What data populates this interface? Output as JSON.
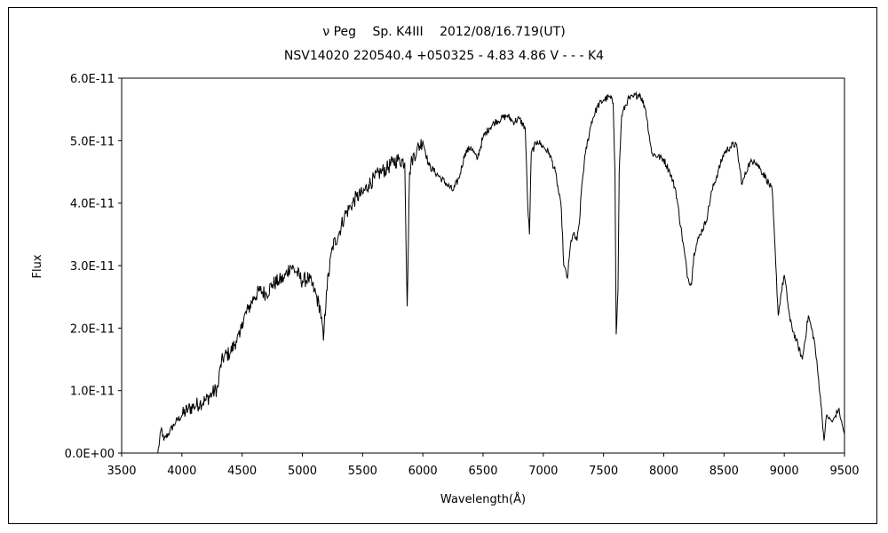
{
  "chart_data": {
    "type": "line",
    "title": "ν Peg　 Sp. K4III　 2012/08/16.719(UT)",
    "subtitle": "NSV14020 220540.4 +050325 - 4.83 4.86 V - - - K4",
    "xlabel": "Wavelength(Å)",
    "ylabel": "Flux",
    "xlim": [
      3500,
      9500
    ],
    "ylim": [
      0,
      6e-11
    ],
    "x_ticks": [
      3500,
      4000,
      4500,
      5000,
      5500,
      6000,
      6500,
      7000,
      7500,
      8000,
      8500,
      9000,
      9500
    ],
    "y_ticks": [
      0,
      1e-11,
      2e-11,
      3e-11,
      4e-11,
      5e-11,
      6e-11
    ],
    "y_tick_labels": [
      "0.0E+00",
      "1.0E-11",
      "2.0E-11",
      "3.0E-11",
      "4.0E-11",
      "5.0E-11",
      "6.0E-11"
    ],
    "grid": false,
    "line_color": "#000000",
    "series": [
      {
        "x": [
          3800,
          3830,
          3850,
          3900,
          3950,
          4000,
          4050,
          4100,
          4150,
          4200,
          4250,
          4300,
          4320,
          4350,
          4400,
          4450,
          4480,
          4500,
          4550,
          4600,
          4650,
          4700,
          4750,
          4800,
          4850,
          4900,
          4950,
          5000,
          5050,
          5100,
          5150,
          5175,
          5200,
          5250,
          5300,
          5350,
          5400,
          5450,
          5500,
          5550,
          5600,
          5650,
          5700,
          5750,
          5800,
          5850,
          5870,
          5890,
          5910,
          5950,
          6000,
          6050,
          6100,
          6150,
          6200,
          6250,
          6300,
          6350,
          6400,
          6450,
          6500,
          6550,
          6600,
          6650,
          6700,
          6750,
          6800,
          6850,
          6870,
          6885,
          6900,
          6950,
          7000,
          7050,
          7100,
          7150,
          7170,
          7200,
          7230,
          7250,
          7280,
          7300,
          7320,
          7350,
          7400,
          7450,
          7500,
          7550,
          7580,
          7595,
          7605,
          7620,
          7630,
          7650,
          7700,
          7750,
          7800,
          7850,
          7900,
          7950,
          8000,
          8050,
          8100,
          8150,
          8200,
          8230,
          8250,
          8300,
          8350,
          8400,
          8450,
          8500,
          8550,
          8600,
          8650,
          8700,
          8750,
          8800,
          8850,
          8900,
          8930,
          8950,
          8970,
          9000,
          9050,
          9100,
          9150,
          9200,
          9250,
          9300,
          9330,
          9350,
          9400,
          9450,
          9500
        ],
        "values": [
          0,
          4e-12,
          2e-12,
          3.5e-12,
          5e-12,
          6e-12,
          7e-12,
          7.5e-12,
          8e-12,
          8.5e-12,
          9.5e-12,
          1.05e-11,
          1.4e-11,
          1.55e-11,
          1.6e-11,
          1.8e-11,
          1.85e-11,
          2.1e-11,
          2.3e-11,
          2.5e-11,
          2.6e-11,
          2.55e-11,
          2.7e-11,
          2.75e-11,
          2.8e-11,
          3e-11,
          2.9e-11,
          2.75e-11,
          2.8e-11,
          2.6e-11,
          2.3e-11,
          1.8e-11,
          2.6e-11,
          3.3e-11,
          3.5e-11,
          3.8e-11,
          3.95e-11,
          4.1e-11,
          4.15e-11,
          4.3e-11,
          4.4e-11,
          4.5e-11,
          4.55e-11,
          4.65e-11,
          4.7e-11,
          4.65e-11,
          2.35e-11,
          4.5e-11,
          4.7e-11,
          4.85e-11,
          5e-11,
          4.6e-11,
          4.5e-11,
          4.4e-11,
          4.3e-11,
          4.2e-11,
          4.4e-11,
          4.8e-11,
          4.9e-11,
          4.7e-11,
          5.05e-11,
          5.2e-11,
          5.3e-11,
          5.35e-11,
          5.4e-11,
          5.3e-11,
          5.35e-11,
          5.2e-11,
          4e-11,
          3.5e-11,
          4.8e-11,
          5e-11,
          4.9e-11,
          4.8e-11,
          4.5e-11,
          3.9e-11,
          3e-11,
          2.8e-11,
          3.4e-11,
          3.5e-11,
          3.4e-11,
          3.7e-11,
          4.3e-11,
          4.8e-11,
          5.3e-11,
          5.55e-11,
          5.65e-11,
          5.7e-11,
          5.6e-11,
          4.5e-11,
          1.9e-11,
          2.6e-11,
          4.5e-11,
          5.4e-11,
          5.65e-11,
          5.7e-11,
          5.75e-11,
          5.5e-11,
          4.8e-11,
          4.75e-11,
          4.7e-11,
          4.5e-11,
          4.2e-11,
          3.5e-11,
          2.8e-11,
          2.7e-11,
          3.2e-11,
          3.5e-11,
          3.7e-11,
          4.2e-11,
          4.5e-11,
          4.8e-11,
          4.9e-11,
          4.95e-11,
          4.3e-11,
          4.6e-11,
          4.7e-11,
          4.55e-11,
          4.4e-11,
          4.2e-11,
          3e-11,
          2.2e-11,
          2.5e-11,
          2.85e-11,
          2.1e-11,
          1.8e-11,
          1.5e-11,
          2.2e-11,
          1.8e-11,
          9e-12,
          2e-12,
          6e-12,
          5e-12,
          7e-12,
          3e-12
        ]
      }
    ]
  }
}
